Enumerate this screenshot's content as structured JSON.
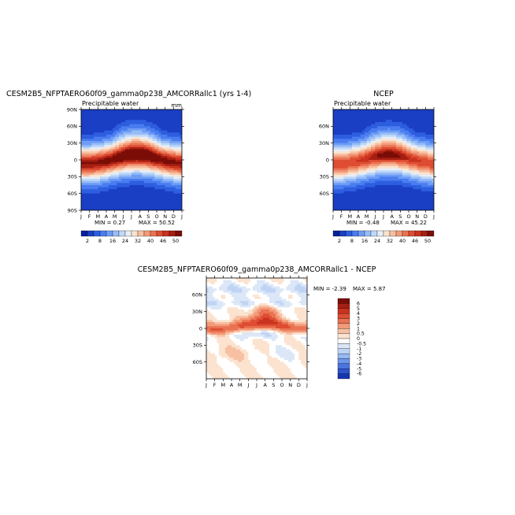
{
  "chart_data": [
    {
      "type": "heatmap",
      "title": "CESM2B5_NFPTAERO60f09_gamma0p238_AMCORRallc1 (yrs 1-4)",
      "subtitle": "Precipitable water",
      "units": "mm",
      "min_label": "MIN =    0.27",
      "max_label": "MAX =  50.52",
      "x_ticks": [
        "J",
        "F",
        "M",
        "A",
        "M",
        "J",
        "J",
        "A",
        "S",
        "O",
        "N",
        "D",
        "J"
      ],
      "y_ticks": [
        "90N",
        "60N",
        "30N",
        "0",
        "30S",
        "60S",
        "90S"
      ],
      "colorbar_labels": [
        "2",
        "8",
        "16",
        "24",
        "32",
        "40",
        "46",
        "50"
      ],
      "colorbar_colors": [
        "#04209b",
        "#1a3fc4",
        "#2e5ee0",
        "#4a7df0",
        "#6e9df5",
        "#97bdf8",
        "#bfd8f8",
        "#e8eef6",
        "#fbe3d0",
        "#f8c0a2",
        "#f29a7a",
        "#ea7352",
        "#de4d33",
        "#c9331f",
        "#a61f12",
        "#7b0d07"
      ],
      "field": {
        "kind": "pw",
        "amp": 1.0,
        "base": 0
      }
    },
    {
      "type": "heatmap",
      "title": "NCEP",
      "subtitle": "Precipitable water",
      "units": "",
      "min_label": "MIN =   -0.48",
      "max_label": "MAX =  45.22",
      "x_ticks": [
        "J",
        "F",
        "M",
        "A",
        "M",
        "J",
        "J",
        "A",
        "S",
        "O",
        "N",
        "D",
        "J"
      ],
      "y_ticks": [
        "60N",
        "30N",
        "0",
        "30S",
        "60S"
      ],
      "colorbar_labels": [
        "2",
        "8",
        "16",
        "24",
        "32",
        "40",
        "46",
        "50"
      ],
      "colorbar_colors": [
        "#04209b",
        "#1a3fc4",
        "#2e5ee0",
        "#4a7df0",
        "#6e9df5",
        "#97bdf8",
        "#bfd8f8",
        "#e8eef6",
        "#fbe3d0",
        "#f8c0a2",
        "#f29a7a",
        "#ea7352",
        "#de4d33",
        "#c9331f",
        "#a61f12",
        "#7b0d07"
      ],
      "field": {
        "kind": "pw",
        "amp": 0.9,
        "base": 0
      }
    },
    {
      "type": "heatmap",
      "title": "CESM2B5_NFPTAERO60f09_gamma0p238_AMCORRallc1 - NCEP",
      "subtitle": "",
      "units": "",
      "min_label": "MIN =   -2.39",
      "max_label": "MAX =   5.87",
      "x_ticks": [
        "J",
        "F",
        "M",
        "A",
        "M",
        "J",
        "J",
        "A",
        "S",
        "O",
        "N",
        "D",
        "J"
      ],
      "y_ticks": [
        "60N",
        "30N",
        "0",
        "30S",
        "60S"
      ],
      "colorbar_labels": [
        "6",
        "5",
        "4",
        "3",
        "2",
        "1",
        "0.5",
        "0",
        "-0.5",
        "-1",
        "-2",
        "-3",
        "-4",
        "-5",
        "-6"
      ],
      "colorbar_colors": [
        "#7b0d07",
        "#a61f12",
        "#c9331f",
        "#de4d33",
        "#ea7352",
        "#f29a7a",
        "#f8c0a2",
        "#fbe3d0",
        "#ffffff",
        "#dbe7f7",
        "#bfd4f5",
        "#97b8f3",
        "#6e97ec",
        "#4a74e0",
        "#2e53cf",
        "#1534b0"
      ],
      "field": {
        "kind": "diff",
        "amp": 1.0,
        "base": 0
      }
    }
  ]
}
